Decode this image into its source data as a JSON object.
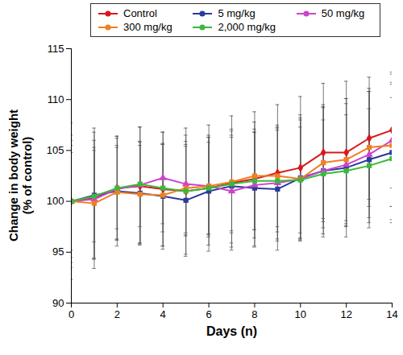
{
  "chart_data": {
    "type": "line",
    "x_label": "Days (n)",
    "y_label": "Change in body weight\n(% of control)",
    "x": [
      0,
      1,
      2,
      3,
      4,
      5,
      6,
      7,
      8,
      9,
      10,
      11,
      12,
      13,
      14
    ],
    "xlim": [
      0,
      14
    ],
    "xticks": [
      0,
      2,
      4,
      6,
      8,
      10,
      12,
      14
    ],
    "ylim": [
      90,
      115
    ],
    "yticks": [
      90,
      95,
      100,
      105,
      110,
      115
    ],
    "grid": false,
    "legend": "top",
    "series": [
      {
        "name": "Control",
        "color": "#d7191c",
        "marker": "diamond",
        "values": [
          100,
          100.3,
          101.3,
          101.5,
          101.2,
          101.0,
          101.3,
          101.8,
          102.2,
          102.8,
          103.3,
          104.8,
          104.8,
          106.2,
          107.0
        ],
        "errors": [
          7.7,
          6.9,
          5.1,
          5.8,
          5.6,
          6.2,
          6.2,
          6.6,
          6.6,
          6.7,
          7.0,
          6.8,
          7.0,
          6.0,
          5.7
        ]
      },
      {
        "name": "5 mg/kg",
        "color": "#2b3a9c",
        "marker": "square",
        "values": [
          100,
          100.6,
          101.0,
          100.8,
          100.5,
          100.1,
          101.0,
          101.5,
          101.3,
          101.2,
          102.3,
          103.0,
          103.3,
          104.1,
          104.8
        ],
        "errors": [
          6.5,
          6.2,
          5.4,
          5.0,
          5.2,
          5.5,
          5.3,
          5.6,
          5.8,
          6.0,
          6.2,
          6.5,
          6.8,
          6.7,
          6.9
        ]
      },
      {
        "name": "50 mg/kg",
        "color": "#cc44cc",
        "marker": "triangle",
        "values": [
          100,
          100.2,
          101.2,
          101.6,
          102.3,
          101.7,
          101.5,
          101.0,
          101.6,
          101.8,
          102.2,
          103.0,
          103.6,
          104.6,
          106.0
        ],
        "errors": [
          5.5,
          5.8,
          5.0,
          5.7,
          4.5,
          4.8,
          5.0,
          5.5,
          5.2,
          5.5,
          6.0,
          6.2,
          6.0,
          6.2,
          6.5
        ]
      },
      {
        "name": "300 mg/kg",
        "color": "#f07f1f",
        "marker": "square",
        "values": [
          100,
          99.8,
          100.9,
          100.7,
          100.6,
          101.3,
          101.5,
          101.9,
          102.5,
          102.5,
          102.2,
          103.8,
          104.1,
          105.3,
          105.5
        ],
        "errors": [
          6.0,
          5.5,
          4.6,
          4.8,
          5.0,
          4.6,
          4.8,
          5.0,
          5.3,
          5.0,
          5.8,
          5.5,
          6.0,
          5.8,
          6.0
        ]
      },
      {
        "name": "2,000 mg/kg",
        "color": "#3cb83c",
        "marker": "square",
        "values": [
          100,
          100.5,
          101.3,
          101.7,
          101.3,
          101.0,
          101.3,
          101.7,
          102.0,
          102.0,
          102.1,
          102.7,
          103.0,
          103.5,
          104.2
        ],
        "errors": [
          4.8,
          4.5,
          4.0,
          4.2,
          4.3,
          4.4,
          4.5,
          4.6,
          4.8,
          5.0,
          5.2,
          5.3,
          5.5,
          5.6,
          6.0
        ]
      }
    ]
  }
}
